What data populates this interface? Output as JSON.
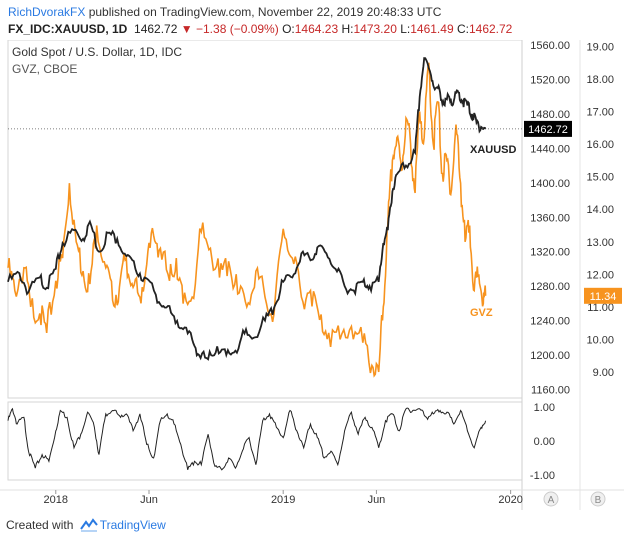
{
  "header": {
    "author": "RichDvorakFX",
    "published_text": "published on TradingView.com, November 22, 2019 20:48:33 UTC",
    "symbol": "FX_IDC:XAUUSD, 1D",
    "last_price": "1462.72",
    "change_arrow": "▼",
    "change_text": "−1.38 (−0.09%)",
    "o_label": "O:",
    "o_value": "1464.23",
    "h_label": "H:",
    "h_value": "1473.20",
    "l_label": "L:",
    "l_value": "1461.49",
    "c_label": "C:",
    "c_value": "1462.72"
  },
  "footer": {
    "created_with": "Created with",
    "brand": "TradingView"
  },
  "colors": {
    "gold": "#222222",
    "gvz": "#f7931e",
    "price_label_bg": "#000000",
    "gvz_label_bg": "#f7931e",
    "red": "#c62828",
    "brand": "#2a7ae2"
  },
  "chart_data": [
    {
      "type": "line",
      "title": "Gold Spot / U.S. Dollar, 1D, IDC",
      "subtitle": "GVZ, CBOE",
      "x_ticks": [
        "2018",
        "Jun",
        "2019",
        "Jun",
        "2020"
      ],
      "left_axis_ticks": [
        "1560.00",
        "1520.00",
        "1480.00",
        "1440.00",
        "1400.00",
        "1360.00",
        "1320.00",
        "1280.00",
        "1240.00",
        "1200.00",
        "1160.00"
      ],
      "right_axis_ticks": [
        "19.00",
        "18.00",
        "17.00",
        "16.00",
        "15.00",
        "14.00",
        "13.00",
        "12.00",
        "11.00",
        "10.00",
        "9.00"
      ],
      "ylim_gold": [
        1150,
        1566
      ],
      "ylim_gvz": [
        8.2,
        19.2
      ],
      "last_gold_label": "1462.72",
      "last_gvz_label": "11.34",
      "series": [
        {
          "name": "XAUUSD",
          "axis": "left",
          "t": [
            2017.79,
            2017.84,
            2017.88,
            2017.93,
            2017.96,
            2018.0,
            2018.03,
            2018.08,
            2018.12,
            2018.15,
            2018.19,
            2018.23,
            2018.27,
            2018.31,
            2018.35,
            2018.39,
            2018.44,
            2018.48,
            2018.52,
            2018.56,
            2018.6,
            2018.63,
            2018.67,
            2018.71,
            2018.75,
            2018.79,
            2018.83,
            2018.87,
            2018.92,
            2018.96,
            2019.0,
            2019.04,
            2019.08,
            2019.12,
            2019.15,
            2019.19,
            2019.23,
            2019.27,
            2019.31,
            2019.35,
            2019.38,
            2019.42,
            2019.44,
            2019.46,
            2019.48,
            2019.5,
            2019.54,
            2019.58,
            2019.6,
            2019.62,
            2019.65,
            2019.67,
            2019.69,
            2019.71,
            2019.73,
            2019.75,
            2019.77,
            2019.79,
            2019.81,
            2019.83,
            2019.85,
            2019.87,
            2019.89
          ],
          "y": [
            1285,
            1295,
            1273,
            1290,
            1278,
            1300,
            1330,
            1345,
            1335,
            1355,
            1320,
            1342,
            1335,
            1315,
            1300,
            1290,
            1270,
            1255,
            1245,
            1230,
            1218,
            1200,
            1195,
            1210,
            1200,
            1205,
            1225,
            1220,
            1240,
            1255,
            1285,
            1290,
            1318,
            1310,
            1325,
            1318,
            1300,
            1280,
            1275,
            1285,
            1280,
            1285,
            1330,
            1345,
            1390,
            1410,
            1420,
            1435,
            1500,
            1545,
            1525,
            1510,
            1505,
            1490,
            1500,
            1495,
            1505,
            1495,
            1490,
            1480,
            1470,
            1465,
            1462.72
          ]
        },
        {
          "name": "GVZ",
          "axis": "right",
          "t": [
            2017.79,
            2017.82,
            2017.86,
            2017.89,
            2017.93,
            2017.96,
            2018.0,
            2018.03,
            2018.06,
            2018.09,
            2018.12,
            2018.15,
            2018.18,
            2018.22,
            2018.25,
            2018.28,
            2018.31,
            2018.34,
            2018.37,
            2018.4,
            2018.43,
            2018.46,
            2018.5,
            2018.53,
            2018.56,
            2018.6,
            2018.64,
            2018.68,
            2018.72,
            2018.76,
            2018.8,
            2018.84,
            2018.88,
            2018.92,
            2018.96,
            2019.0,
            2019.04,
            2019.08,
            2019.12,
            2019.16,
            2019.2,
            2019.25,
            2019.3,
            2019.35,
            2019.39,
            2019.42,
            2019.44,
            2019.46,
            2019.48,
            2019.5,
            2019.52,
            2019.54,
            2019.56,
            2019.58,
            2019.6,
            2019.62,
            2019.64,
            2019.66,
            2019.68,
            2019.7,
            2019.72,
            2019.74,
            2019.76,
            2019.78,
            2019.8,
            2019.82,
            2019.84,
            2019.86,
            2019.88,
            2019.89
          ],
          "y": [
            12.2,
            11.5,
            12.2,
            11.0,
            10.8,
            10.2,
            11.8,
            12.5,
            14.8,
            13.0,
            12.1,
            11.7,
            13.5,
            12.2,
            11.2,
            11.6,
            12.5,
            11.6,
            11.3,
            12.3,
            13.2,
            12.8,
            11.8,
            12.5,
            11.1,
            11.3,
            13.3,
            12.8,
            11.9,
            12.4,
            11.4,
            11.0,
            12.1,
            11.3,
            10.8,
            13.4,
            12.5,
            11.3,
            11.5,
            10.6,
            10.2,
            10.0,
            10.4,
            9.9,
            9.2,
            9.0,
            11.0,
            13.5,
            15.5,
            16.2,
            15.2,
            16.8,
            16.0,
            14.5,
            17.0,
            16.2,
            18.5,
            16.0,
            17.3,
            15.1,
            15.5,
            14.6,
            16.6,
            14.8,
            13.0,
            13.5,
            11.5,
            12.0,
            11.1,
            11.34
          ]
        }
      ],
      "series_labels": [
        "XAUUSD",
        "GVZ"
      ]
    },
    {
      "type": "line",
      "title": "",
      "ylim": [
        -1.0,
        1.0
      ],
      "right_axis_ticks": [
        "1.00",
        "0.00",
        "-1.00"
      ],
      "series": [
        {
          "name": "",
          "t": [
            2017.79,
            2017.81,
            2017.83,
            2017.86,
            2017.88,
            2017.91,
            2017.94,
            2017.97,
            2018.0,
            2018.02,
            2018.05,
            2018.08,
            2018.11,
            2018.14,
            2018.17,
            2018.19,
            2018.22,
            2018.25,
            2018.28,
            2018.31,
            2018.34,
            2018.37,
            2018.4,
            2018.43,
            2018.46,
            2018.49,
            2018.52,
            2018.55,
            2018.58,
            2018.61,
            2018.64,
            2018.67,
            2018.7,
            2018.73,
            2018.76,
            2018.79,
            2018.82,
            2018.85,
            2018.88,
            2018.91,
            2018.94,
            2018.97,
            2019.0,
            2019.03,
            2019.06,
            2019.09,
            2019.12,
            2019.15,
            2019.18,
            2019.21,
            2019.24,
            2019.27,
            2019.3,
            2019.33,
            2019.36,
            2019.39,
            2019.42,
            2019.45,
            2019.48,
            2019.51,
            2019.54,
            2019.57,
            2019.6,
            2019.63,
            2019.66,
            2019.69,
            2019.72,
            2019.75,
            2019.78,
            2019.81,
            2019.84,
            2019.87,
            2019.89
          ],
          "y": [
            0.6,
            0.95,
            0.5,
            0.7,
            -0.3,
            -0.8,
            -0.4,
            -0.6,
            0.3,
            0.9,
            0.7,
            -0.2,
            0.2,
            0.85,
            0.4,
            -0.4,
            0.8,
            0.9,
            0.75,
            0.8,
            0.3,
            0.8,
            -0.1,
            -0.5,
            0.6,
            0.8,
            0.5,
            -0.1,
            -0.85,
            -0.6,
            -0.7,
            0.2,
            -0.75,
            -0.85,
            -0.5,
            -0.8,
            -0.3,
            0.1,
            -0.7,
            0.6,
            0.8,
            0.4,
            0.1,
            0.9,
            0.3,
            -0.2,
            0.5,
            0.1,
            -0.5,
            -0.3,
            -0.7,
            0.3,
            0.85,
            0.2,
            0.7,
            0.4,
            -0.2,
            0.6,
            0.8,
            0.3,
            0.95,
            0.9,
            0.95,
            0.7,
            0.8,
            0.9,
            0.85,
            0.5,
            0.9,
            0.3,
            -0.2,
            0.4,
            0.6
          ]
        }
      ]
    }
  ],
  "scale_buttons": [
    "A",
    "B"
  ]
}
